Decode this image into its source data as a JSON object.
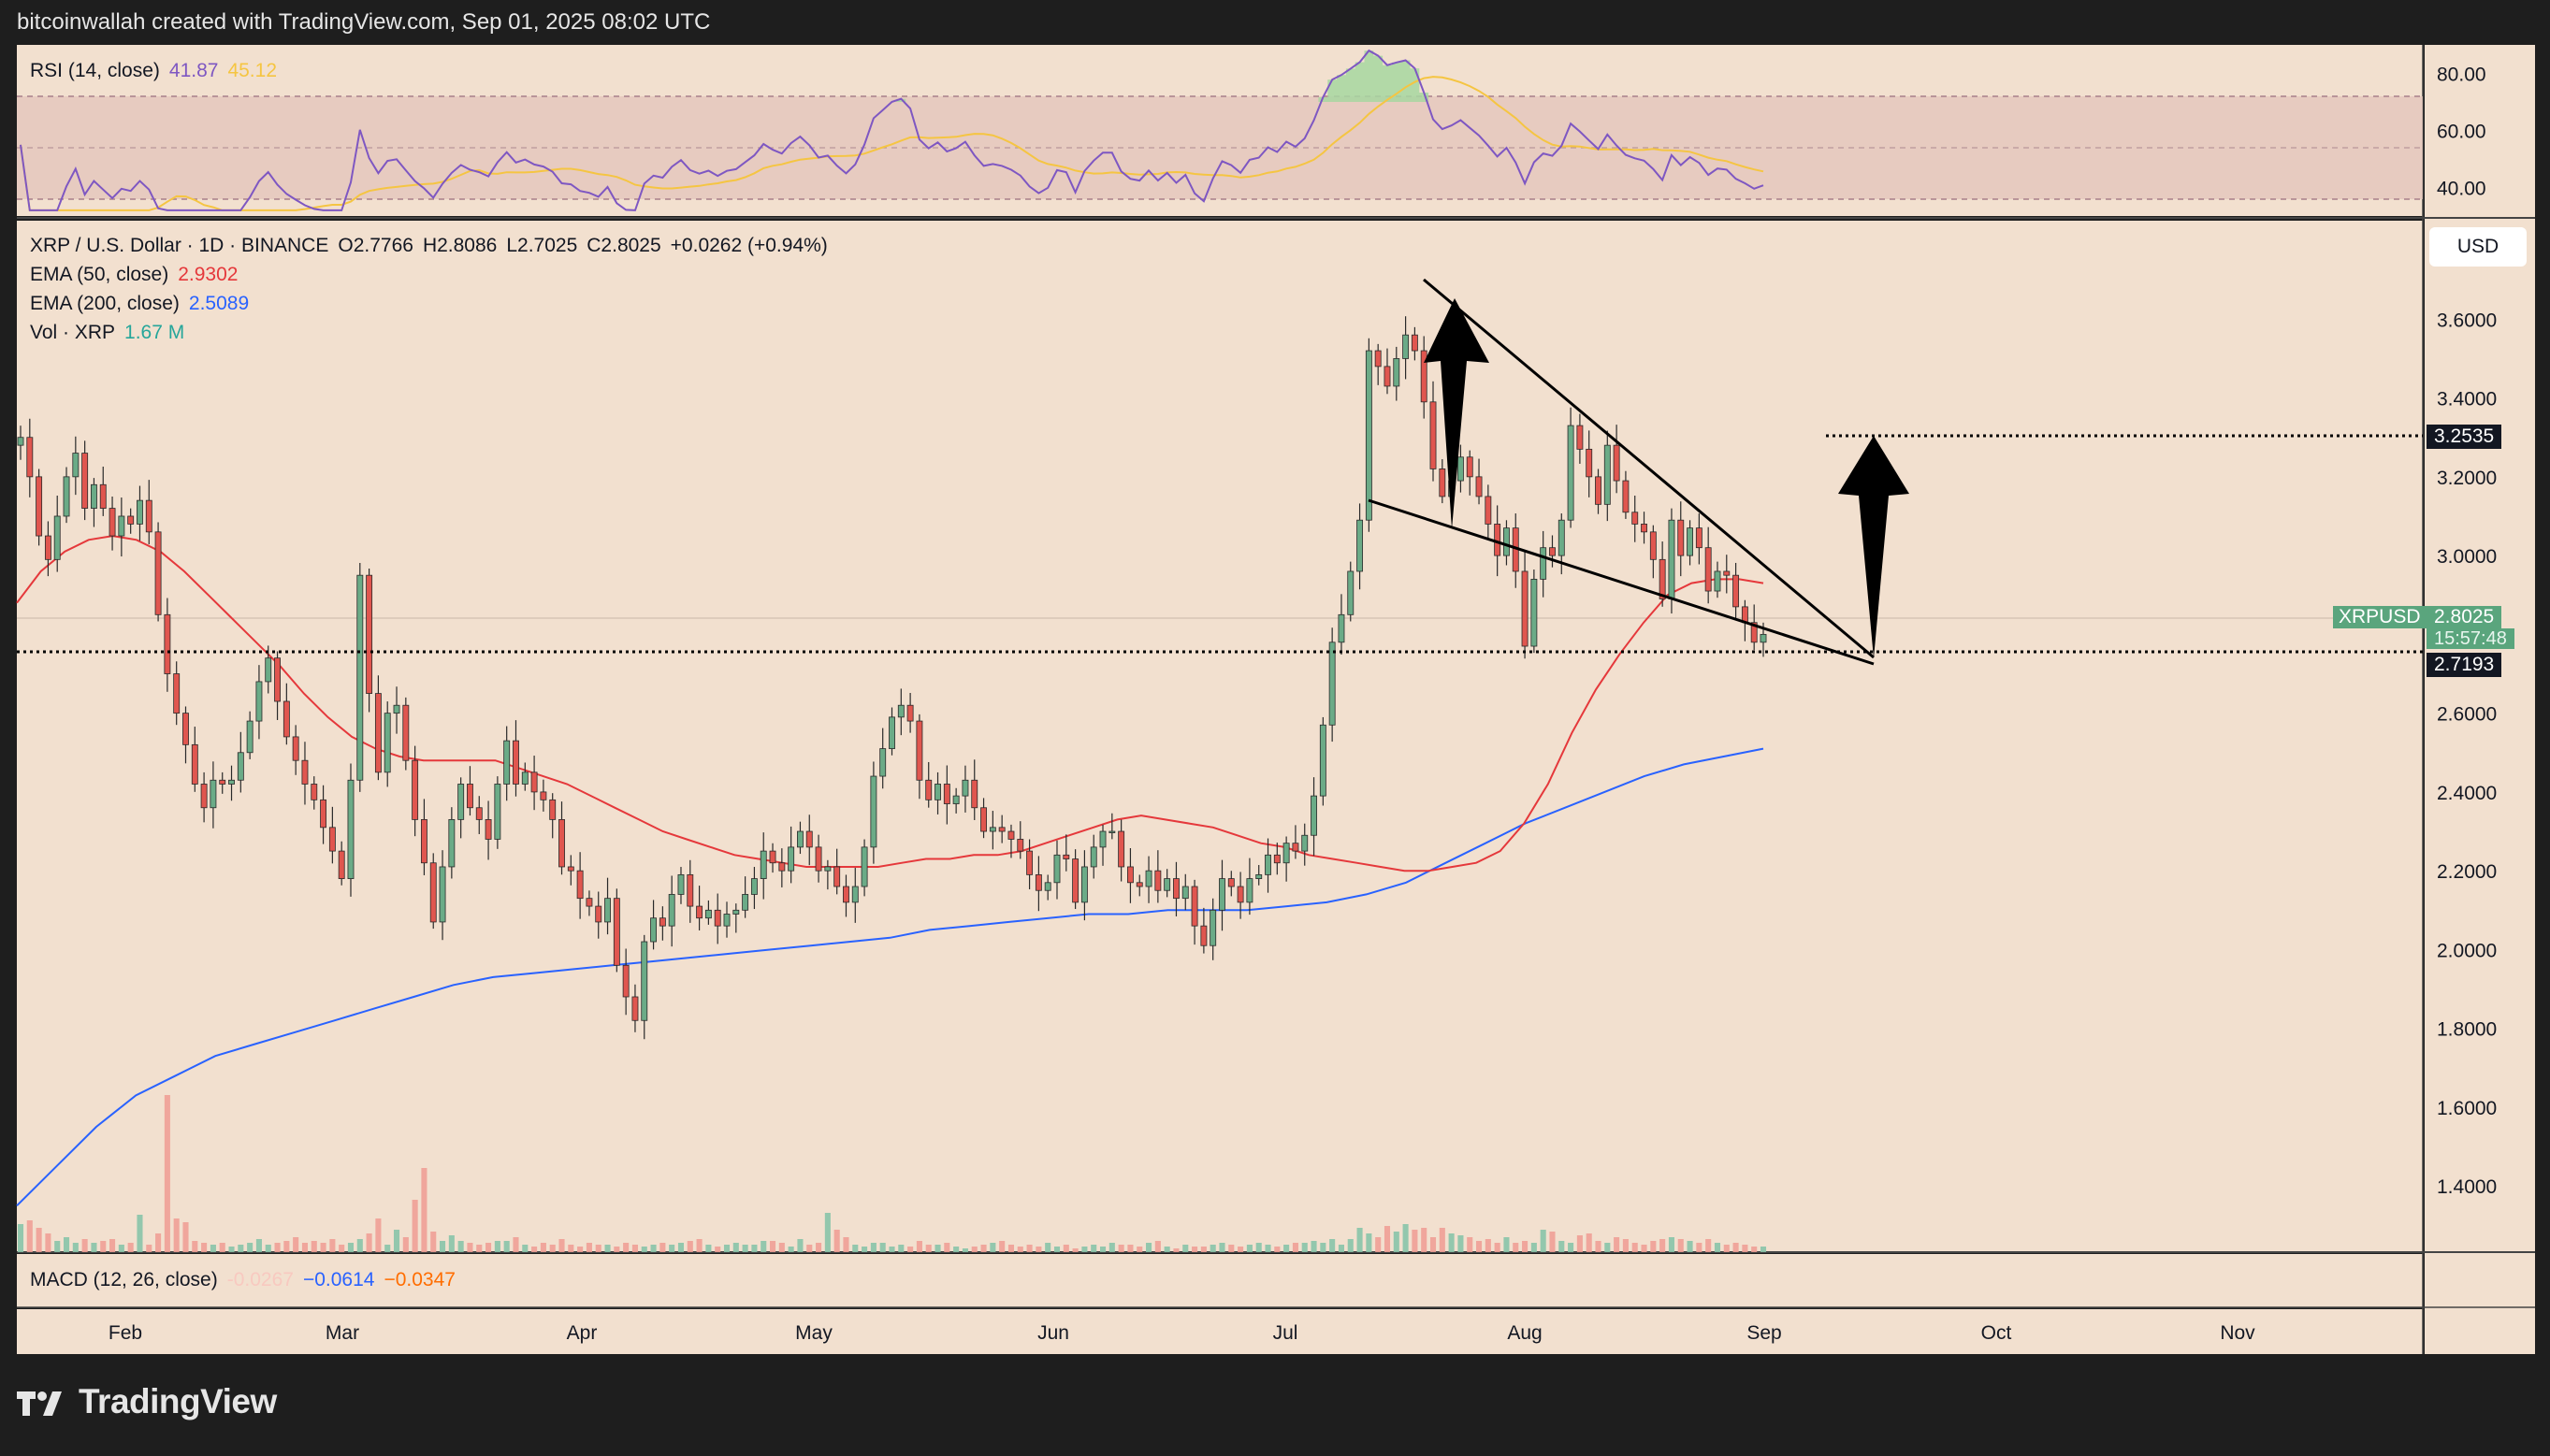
{
  "header": {
    "caption": "bitcoinwallah created with TradingView.com, Sep 01, 2025 08:02 UTC"
  },
  "brand": {
    "name": "TradingView"
  },
  "colors": {
    "background": "#f2e0cf",
    "frame": "#1e1e1e",
    "up_candle": "#6bab87",
    "down_candle": "#e0564f",
    "ema50": "#e5383b",
    "ema200": "#2962ff",
    "rsi": "#7e57c2",
    "rsi_ma": "#f5c542",
    "macd": "#2962ff",
    "signal": "#ff6d00"
  },
  "rsi_legend": {
    "label": "RSI (14, close)",
    "v1": "41.87",
    "v2": "45.12"
  },
  "price_legend": {
    "title": "XRP / U.S. Dollar · 1D · BINANCE",
    "o": "O2.7766",
    "h": "H2.8086",
    "l": "L2.7025",
    "c": "C2.8025",
    "chg": "+0.0262 (+0.94%)",
    "ema50_label": "EMA (50, close)",
    "ema50_val": "2.9302",
    "ema200_label": "EMA (200, close)",
    "ema200_val": "2.5089",
    "vol_label": "Vol · XRP",
    "vol_val": "1.67 M"
  },
  "macd_legend": {
    "label": "MACD (12, 26, close)",
    "hist": "-0.0267",
    "macd": "−0.0614",
    "signal": "−0.0347"
  },
  "currency_button": "USD",
  "price_labels": {
    "target": "3.2535",
    "symbol": "XRPUSD",
    "last": "2.8025",
    "countdown": "15:57:48",
    "support": "2.7193"
  },
  "chart_data": [
    {
      "type": "candlestick",
      "title": "XRP / U.S. Dollar · 1D · BINANCE",
      "x_ticks": [
        "Feb",
        "Mar",
        "Apr",
        "May",
        "Jun",
        "Jul",
        "Aug",
        "Sep",
        "Oct",
        "Nov"
      ],
      "y_ticks": [
        "3.6000",
        "3.4000",
        "3.2000",
        "3.0000",
        "2.8000",
        "2.6000",
        "2.4000",
        "2.2000",
        "2.0000",
        "1.8000",
        "1.6000",
        "1.4000"
      ],
      "y_range": [
        1.232,
        3.85
      ],
      "series_close": [
        3.3,
        3.2,
        3.05,
        2.99,
        3.1,
        3.2,
        3.26,
        3.12,
        3.18,
        3.12,
        3.05,
        3.1,
        3.08,
        3.14,
        3.06,
        2.85,
        2.7,
        2.6,
        2.52,
        2.42,
        2.36,
        2.43,
        2.42,
        2.43,
        2.5,
        2.58,
        2.68,
        2.74,
        2.63,
        2.54,
        2.48,
        2.42,
        2.38,
        2.31,
        2.25,
        2.18,
        2.43,
        2.95,
        2.65,
        2.45,
        2.6,
        2.62,
        2.48,
        2.33,
        2.22,
        2.07,
        2.21,
        2.33,
        2.42,
        2.36,
        2.33,
        2.28,
        2.42,
        2.53,
        2.42,
        2.45,
        2.4,
        2.38,
        2.33,
        2.21,
        2.2,
        2.13,
        2.11,
        2.07,
        2.13,
        1.96,
        1.88,
        1.82,
        2.02,
        2.08,
        2.06,
        2.14,
        2.19,
        2.11,
        2.08,
        2.1,
        2.06,
        2.09,
        2.1,
        2.14,
        2.18,
        2.25,
        2.22,
        2.2,
        2.26,
        2.3,
        2.26,
        2.2,
        2.21,
        2.16,
        2.12,
        2.16,
        2.26,
        2.44,
        2.51,
        2.59,
        2.62,
        2.58,
        2.43,
        2.38,
        2.42,
        2.37,
        2.39,
        2.43,
        2.36,
        2.3,
        2.31,
        2.3,
        2.28,
        2.25,
        2.19,
        2.15,
        2.17,
        2.24,
        2.23,
        2.12,
        2.21,
        2.26,
        2.3,
        2.3,
        2.21,
        2.17,
        2.16,
        2.2,
        2.15,
        2.18,
        2.13,
        2.16,
        2.06,
        2.01,
        2.1,
        2.18,
        2.16,
        2.12,
        2.18,
        2.19,
        2.24,
        2.22,
        2.27,
        2.25,
        2.29,
        2.39,
        2.57,
        2.78,
        2.85,
        2.96,
        3.09,
        3.52,
        3.48,
        3.43,
        3.5,
        3.56,
        3.52,
        3.39,
        3.22,
        3.15,
        3.19,
        3.25,
        3.2,
        3.15,
        3.08,
        3.0,
        3.07,
        2.96,
        2.77,
        2.94,
        3.02,
        3.0,
        3.09,
        3.33,
        3.27,
        3.2,
        3.13,
        3.28,
        3.19,
        3.11,
        3.08,
        3.06,
        2.99,
        2.89,
        3.09,
        3.0,
        3.07,
        3.02,
        2.91,
        2.96,
        2.95,
        2.87,
        2.83,
        2.78,
        2.8
      ],
      "ema50": [
        2.88,
        2.96,
        3.01,
        3.04,
        3.05,
        3.04,
        3.01,
        2.96,
        2.9,
        2.84,
        2.78,
        2.72,
        2.65,
        2.59,
        2.54,
        2.51,
        2.49,
        2.48,
        2.48,
        2.48,
        2.48,
        2.46,
        2.44,
        2.42,
        2.39,
        2.36,
        2.33,
        2.3,
        2.28,
        2.26,
        2.24,
        2.23,
        2.22,
        2.21,
        2.21,
        2.21,
        2.21,
        2.22,
        2.23,
        2.23,
        2.24,
        2.24,
        2.25,
        2.27,
        2.29,
        2.31,
        2.33,
        2.34,
        2.33,
        2.32,
        2.31,
        2.29,
        2.27,
        2.26,
        2.24,
        2.23,
        2.22,
        2.21,
        2.2,
        2.2,
        2.21,
        2.22,
        2.25,
        2.32,
        2.42,
        2.55,
        2.66,
        2.75,
        2.83,
        2.9,
        2.93,
        2.94,
        2.94,
        2.93
      ],
      "ema200": [
        1.35,
        1.45,
        1.55,
        1.63,
        1.68,
        1.73,
        1.76,
        1.79,
        1.82,
        1.85,
        1.88,
        1.91,
        1.93,
        1.94,
        1.95,
        1.96,
        1.97,
        1.98,
        1.99,
        2.0,
        2.01,
        2.02,
        2.03,
        2.05,
        2.06,
        2.07,
        2.08,
        2.09,
        2.09,
        2.1,
        2.1,
        2.1,
        2.11,
        2.12,
        2.14,
        2.17,
        2.22,
        2.27,
        2.32,
        2.36,
        2.4,
        2.44,
        2.47,
        2.49,
        2.51
      ],
      "volume": [
        30,
        34,
        26,
        20,
        12,
        16,
        10,
        14,
        10,
        12,
        14,
        8,
        10,
        40,
        8,
        20,
        168,
        36,
        32,
        12,
        10,
        8,
        10,
        6,
        8,
        10,
        14,
        8,
        10,
        12,
        16,
        10,
        12,
        10,
        14,
        8,
        10,
        14,
        20,
        36,
        8,
        24,
        16,
        56,
        90,
        22,
        12,
        18,
        12,
        10,
        8,
        10,
        12,
        12,
        16,
        8,
        6,
        10,
        8,
        14,
        8,
        6,
        10,
        8,
        8,
        6,
        10,
        8,
        6,
        8,
        10,
        8,
        10,
        12,
        14,
        8,
        6,
        8,
        10,
        8,
        8,
        12,
        12,
        10,
        6,
        14,
        8,
        10,
        42,
        24,
        16,
        8,
        6,
        10,
        10,
        6,
        8,
        6,
        12,
        8,
        8,
        10,
        6,
        4,
        6,
        8,
        10,
        12,
        8,
        6,
        8,
        6,
        10,
        6,
        8,
        4,
        6,
        8,
        6,
        10,
        8,
        8,
        6,
        10,
        12,
        6,
        4,
        8,
        6,
        6,
        8,
        10,
        8,
        6,
        8,
        10,
        8,
        6,
        8,
        10,
        10,
        12,
        10,
        14,
        8,
        14,
        26,
        20,
        16,
        28,
        22,
        30,
        24,
        26,
        16,
        26,
        20,
        18,
        16,
        12,
        14,
        10,
        16,
        10,
        12,
        10,
        24,
        22,
        12,
        10,
        18,
        20,
        12,
        10,
        16,
        14,
        10,
        8,
        12,
        14,
        16,
        14,
        12,
        10,
        14,
        10,
        8,
        10,
        8,
        6,
        6
      ]
    },
    {
      "type": "line",
      "title": "RSI (14, close)",
      "y_ticks": [
        "80.00",
        "60.00",
        "40.00"
      ],
      "y_range": [
        30,
        90
      ]
    }
  ]
}
